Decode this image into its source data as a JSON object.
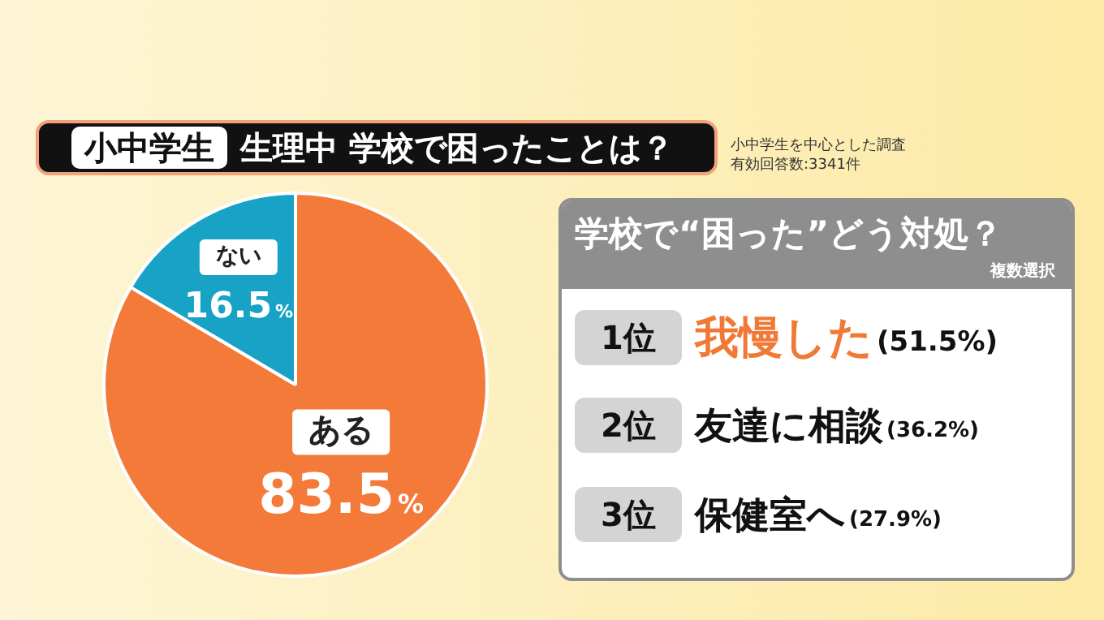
{
  "chart_data": [
    {
      "type": "pie",
      "title": "小中学生 生理中 学校で困ったことは？",
      "categories": [
        "ある",
        "ない"
      ],
      "values": [
        83.5,
        16.5
      ],
      "colors": [
        "#f47a3a",
        "#17a2c6"
      ],
      "value_labels": [
        "83.5%",
        "16.5%"
      ],
      "annotations": [
        "小中学生を中心とした調査",
        "有効回答数:3341件"
      ],
      "legend": false
    },
    {
      "type": "other",
      "title": "学校で“困った”どう対処？",
      "subtitle": "複数選択",
      "categories": [
        "我慢した",
        "友達に相談",
        "保健室へ"
      ],
      "value_labels": [
        "(51.5%)",
        "(36.2%)",
        "(27.9%)"
      ],
      "annotations": [
        "1位",
        "2位",
        "3位"
      ]
    }
  ]
}
